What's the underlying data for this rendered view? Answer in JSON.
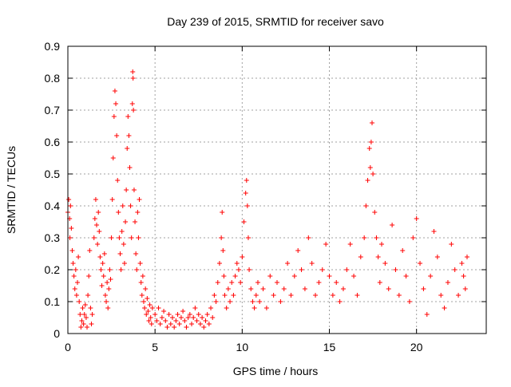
{
  "chart_data": {
    "type": "scatter",
    "title": "Day 239 of 2015, SRMTID for receiver savo",
    "xlabel": "GPS time / hours",
    "ylabel": "SRMTID / TECUs",
    "xlim": [
      0,
      24
    ],
    "ylim": [
      0,
      0.9
    ],
    "xticks": [
      0,
      5,
      10,
      15,
      20
    ],
    "xtick_labels": [
      "0",
      "5",
      "10",
      "15",
      "20"
    ],
    "yticks": [
      0,
      0.1,
      0.2,
      0.3,
      0.4,
      0.5,
      0.6,
      0.7,
      0.8,
      0.9
    ],
    "ytick_labels": [
      "0",
      "0.1",
      "0.2",
      "0.3",
      "0.4",
      "0.5",
      "0.6",
      "0.7",
      "0.8",
      "0.9"
    ],
    "grid": true,
    "marker": "+",
    "series": [
      {
        "name": "SRMTID",
        "color": "#ff0000",
        "points": [
          [
            0.0,
            0.38
          ],
          [
            0.05,
            0.42
          ],
          [
            0.1,
            0.36
          ],
          [
            0.12,
            0.3
          ],
          [
            0.15,
            0.4
          ],
          [
            0.2,
            0.33
          ],
          [
            0.25,
            0.26
          ],
          [
            0.3,
            0.22
          ],
          [
            0.35,
            0.18
          ],
          [
            0.4,
            0.14
          ],
          [
            0.45,
            0.2
          ],
          [
            0.5,
            0.12
          ],
          [
            0.55,
            0.16
          ],
          [
            0.6,
            0.24
          ],
          [
            0.65,
            0.1
          ],
          [
            0.7,
            0.06
          ],
          [
            0.75,
            0.02
          ],
          [
            0.8,
            0.04
          ],
          [
            0.85,
            0.08
          ],
          [
            0.9,
            0.03
          ],
          [
            0.95,
            0.06
          ],
          [
            1.0,
            0.09
          ],
          [
            1.05,
            0.05
          ],
          [
            1.1,
            0.02
          ],
          [
            1.15,
            0.12
          ],
          [
            1.2,
            0.18
          ],
          [
            1.25,
            0.26
          ],
          [
            1.3,
            0.08
          ],
          [
            1.35,
            0.03
          ],
          [
            1.4,
            0.06
          ],
          [
            1.5,
            0.3
          ],
          [
            1.55,
            0.36
          ],
          [
            1.6,
            0.42
          ],
          [
            1.65,
            0.34
          ],
          [
            1.7,
            0.28
          ],
          [
            1.75,
            0.38
          ],
          [
            1.8,
            0.32
          ],
          [
            1.85,
            0.24
          ],
          [
            1.9,
            0.2
          ],
          [
            1.95,
            0.15
          ],
          [
            2.0,
            0.22
          ],
          [
            2.05,
            0.18
          ],
          [
            2.1,
            0.25
          ],
          [
            2.15,
            0.12
          ],
          [
            2.2,
            0.1
          ],
          [
            2.25,
            0.16
          ],
          [
            2.3,
            0.08
          ],
          [
            2.35,
            0.14
          ],
          [
            2.4,
            0.2
          ],
          [
            2.45,
            0.17
          ],
          [
            2.5,
            0.3
          ],
          [
            2.55,
            0.42
          ],
          [
            2.6,
            0.55
          ],
          [
            2.65,
            0.68
          ],
          [
            2.7,
            0.76
          ],
          [
            2.75,
            0.72
          ],
          [
            2.8,
            0.62
          ],
          [
            2.85,
            0.48
          ],
          [
            2.9,
            0.38
          ],
          [
            2.95,
            0.3
          ],
          [
            3.0,
            0.25
          ],
          [
            3.05,
            0.2
          ],
          [
            3.1,
            0.32
          ],
          [
            3.15,
            0.4
          ],
          [
            3.2,
            0.28
          ],
          [
            3.25,
            0.22
          ],
          [
            3.3,
            0.35
          ],
          [
            3.35,
            0.45
          ],
          [
            3.4,
            0.58
          ],
          [
            3.45,
            0.68
          ],
          [
            3.5,
            0.62
          ],
          [
            3.55,
            0.52
          ],
          [
            3.6,
            0.4
          ],
          [
            3.65,
            0.3
          ],
          [
            3.7,
            0.72
          ],
          [
            3.72,
            0.82
          ],
          [
            3.74,
            0.8
          ],
          [
            3.76,
            0.7
          ],
          [
            3.8,
            0.45
          ],
          [
            3.85,
            0.35
          ],
          [
            3.9,
            0.25
          ],
          [
            3.95,
            0.2
          ],
          [
            4.0,
            0.38
          ],
          [
            4.05,
            0.3
          ],
          [
            4.1,
            0.42
          ],
          [
            4.15,
            0.22
          ],
          [
            4.2,
            0.16
          ],
          [
            4.25,
            0.12
          ],
          [
            4.3,
            0.18
          ],
          [
            4.35,
            0.1
          ],
          [
            4.4,
            0.08
          ],
          [
            4.45,
            0.14
          ],
          [
            4.5,
            0.06
          ],
          [
            4.55,
            0.11
          ],
          [
            4.6,
            0.07
          ],
          [
            4.65,
            0.04
          ],
          [
            4.7,
            0.09
          ],
          [
            4.75,
            0.05
          ],
          [
            4.8,
            0.03
          ],
          [
            4.85,
            0.08
          ],
          [
            5.0,
            0.06
          ],
          [
            5.1,
            0.04
          ],
          [
            5.2,
            0.08
          ],
          [
            5.3,
            0.03
          ],
          [
            5.4,
            0.05
          ],
          [
            5.5,
            0.07
          ],
          [
            5.6,
            0.04
          ],
          [
            5.7,
            0.02
          ],
          [
            5.8,
            0.06
          ],
          [
            5.9,
            0.03
          ],
          [
            6.0,
            0.05
          ],
          [
            6.1,
            0.02
          ],
          [
            6.2,
            0.04
          ],
          [
            6.3,
            0.06
          ],
          [
            6.4,
            0.03
          ],
          [
            6.5,
            0.05
          ],
          [
            6.6,
            0.07
          ],
          [
            6.7,
            0.04
          ],
          [
            6.8,
            0.02
          ],
          [
            6.9,
            0.05
          ],
          [
            7.0,
            0.06
          ],
          [
            7.1,
            0.03
          ],
          [
            7.2,
            0.05
          ],
          [
            7.3,
            0.08
          ],
          [
            7.4,
            0.04
          ],
          [
            7.5,
            0.06
          ],
          [
            7.6,
            0.03
          ],
          [
            7.7,
            0.05
          ],
          [
            7.8,
            0.02
          ],
          [
            7.9,
            0.04
          ],
          [
            8.0,
            0.06
          ],
          [
            8.1,
            0.03
          ],
          [
            8.2,
            0.08
          ],
          [
            8.3,
            0.05
          ],
          [
            8.4,
            0.12
          ],
          [
            8.5,
            0.1
          ],
          [
            8.6,
            0.16
          ],
          [
            8.7,
            0.22
          ],
          [
            8.8,
            0.3
          ],
          [
            8.85,
            0.38
          ],
          [
            8.9,
            0.26
          ],
          [
            8.95,
            0.18
          ],
          [
            9.0,
            0.12
          ],
          [
            9.1,
            0.08
          ],
          [
            9.2,
            0.14
          ],
          [
            9.3,
            0.1
          ],
          [
            9.4,
            0.16
          ],
          [
            9.5,
            0.12
          ],
          [
            9.6,
            0.18
          ],
          [
            9.7,
            0.22
          ],
          [
            9.8,
            0.2
          ],
          [
            9.9,
            0.16
          ],
          [
            10.0,
            0.24
          ],
          [
            10.1,
            0.35
          ],
          [
            10.2,
            0.44
          ],
          [
            10.25,
            0.48
          ],
          [
            10.3,
            0.4
          ],
          [
            10.35,
            0.3
          ],
          [
            10.4,
            0.2
          ],
          [
            10.5,
            0.14
          ],
          [
            10.6,
            0.1
          ],
          [
            10.7,
            0.08
          ],
          [
            10.8,
            0.12
          ],
          [
            10.9,
            0.16
          ],
          [
            11.0,
            0.1
          ],
          [
            11.2,
            0.14
          ],
          [
            11.4,
            0.08
          ],
          [
            11.6,
            0.18
          ],
          [
            11.8,
            0.12
          ],
          [
            12.0,
            0.16
          ],
          [
            12.2,
            0.1
          ],
          [
            12.4,
            0.14
          ],
          [
            12.6,
            0.22
          ],
          [
            12.8,
            0.12
          ],
          [
            13.0,
            0.18
          ],
          [
            13.2,
            0.26
          ],
          [
            13.4,
            0.2
          ],
          [
            13.6,
            0.14
          ],
          [
            13.8,
            0.3
          ],
          [
            14.0,
            0.22
          ],
          [
            14.2,
            0.12
          ],
          [
            14.4,
            0.16
          ],
          [
            14.6,
            0.2
          ],
          [
            14.8,
            0.28
          ],
          [
            15.0,
            0.18
          ],
          [
            15.2,
            0.12
          ],
          [
            15.4,
            0.16
          ],
          [
            15.6,
            0.1
          ],
          [
            15.8,
            0.14
          ],
          [
            16.0,
            0.2
          ],
          [
            16.2,
            0.28
          ],
          [
            16.4,
            0.18
          ],
          [
            16.6,
            0.12
          ],
          [
            16.8,
            0.24
          ],
          [
            17.0,
            0.3
          ],
          [
            17.1,
            0.4
          ],
          [
            17.2,
            0.48
          ],
          [
            17.3,
            0.58
          ],
          [
            17.35,
            0.52
          ],
          [
            17.4,
            0.6
          ],
          [
            17.45,
            0.66
          ],
          [
            17.5,
            0.5
          ],
          [
            17.6,
            0.38
          ],
          [
            17.7,
            0.3
          ],
          [
            17.8,
            0.24
          ],
          [
            17.9,
            0.16
          ],
          [
            18.0,
            0.28
          ],
          [
            18.2,
            0.22
          ],
          [
            18.4,
            0.14
          ],
          [
            18.6,
            0.34
          ],
          [
            18.8,
            0.2
          ],
          [
            19.0,
            0.12
          ],
          [
            19.2,
            0.26
          ],
          [
            19.4,
            0.18
          ],
          [
            19.6,
            0.1
          ],
          [
            19.8,
            0.3
          ],
          [
            20.0,
            0.36
          ],
          [
            20.2,
            0.22
          ],
          [
            20.4,
            0.14
          ],
          [
            20.6,
            0.06
          ],
          [
            20.8,
            0.18
          ],
          [
            21.0,
            0.32
          ],
          [
            21.2,
            0.24
          ],
          [
            21.4,
            0.12
          ],
          [
            21.6,
            0.08
          ],
          [
            21.8,
            0.16
          ],
          [
            22.0,
            0.28
          ],
          [
            22.2,
            0.2
          ],
          [
            22.4,
            0.12
          ],
          [
            22.6,
            0.22
          ],
          [
            22.7,
            0.18
          ],
          [
            22.8,
            0.14
          ],
          [
            22.9,
            0.24
          ]
        ]
      }
    ]
  }
}
